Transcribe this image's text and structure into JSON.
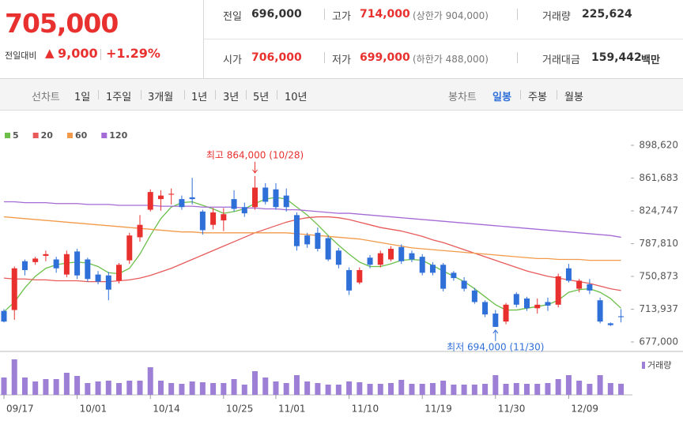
{
  "header": {
    "price": "705,000",
    "change_label": "전일대비",
    "change": "9,000",
    "change_rate": "+1.29%",
    "stats": [
      [
        {
          "label": "전일",
          "value": "696,000"
        },
        {
          "label": "고가",
          "value": "714,000",
          "note": "(상한가 904,000)"
        },
        {
          "label": "거래량",
          "value": "225,624"
        }
      ],
      [
        {
          "label": "시가",
          "value": "706,000"
        },
        {
          "label": "저가",
          "value": "699,000",
          "note": "(하한가 488,000)"
        },
        {
          "label": "거래대금",
          "value": "159,442",
          "unit": "백만"
        }
      ]
    ]
  },
  "toolbar": {
    "line_label": "선차트",
    "line_periods": [
      "1일",
      "1주일",
      "3개월",
      "1년",
      "3년",
      "5년",
      "10년"
    ],
    "candle_label": "봉차트",
    "candle_periods": [
      "일봉",
      "주봉",
      "월봉"
    ]
  },
  "chart_data": [
    {
      "type": "candlestick",
      "categories": [
        "09/17",
        null,
        null,
        null,
        null,
        null,
        null,
        "10/01",
        null,
        null,
        null,
        null,
        null,
        null,
        "10/14",
        null,
        null,
        null,
        null,
        null,
        null,
        "10/25",
        null,
        null,
        null,
        null,
        "11/01",
        null,
        null,
        null,
        null,
        null,
        null,
        "11/10",
        null,
        null,
        null,
        null,
        null,
        null,
        "11/19",
        null,
        null,
        null,
        null,
        null,
        null,
        "11/30",
        null,
        null,
        null,
        null,
        null,
        null,
        "12/09",
        null,
        null,
        null,
        null,
        null
      ],
      "open": [
        712000,
        713000,
        768000,
        767000,
        774000,
        770000,
        753000,
        779000,
        770000,
        753000,
        752000,
        746000,
        769000,
        795000,
        826000,
        838000,
        843000,
        838000,
        840000,
        824000,
        809000,
        814000,
        838000,
        829000,
        829000,
        851000,
        849000,
        842000,
        820000,
        797000,
        800000,
        794000,
        780000,
        758000,
        744000,
        772000,
        764000,
        770000,
        784000,
        777000,
        773000,
        764000,
        764000,
        755000,
        746000,
        735000,
        722000,
        709000,
        700000,
        731000,
        726000,
        715000,
        722000,
        719000,
        760000,
        737000,
        742000,
        724000,
        698000,
        706000
      ],
      "high": [
        714000,
        762000,
        770000,
        773000,
        780000,
        773000,
        780000,
        782000,
        772000,
        757000,
        756000,
        766000,
        800000,
        820000,
        849000,
        848000,
        850000,
        842000,
        862000,
        826000,
        828000,
        828000,
        848000,
        834000,
        864000,
        856000,
        856000,
        850000,
        823000,
        800000,
        806000,
        797000,
        783000,
        761000,
        761000,
        775000,
        780000,
        785000,
        787000,
        780000,
        776000,
        767000,
        766000,
        757000,
        750000,
        738000,
        724000,
        713000,
        721000,
        733000,
        728000,
        726000,
        727000,
        754000,
        765000,
        748000,
        748000,
        727000,
        699000,
        714000
      ],
      "low": [
        699000,
        702000,
        752000,
        764000,
        768000,
        755000,
        750000,
        748000,
        745000,
        742000,
        724000,
        743000,
        765000,
        790000,
        824000,
        825000,
        832000,
        826000,
        832000,
        798000,
        804000,
        802000,
        824000,
        818000,
        826000,
        832000,
        826000,
        824000,
        780000,
        783000,
        779000,
        768000,
        760000,
        730000,
        742000,
        760000,
        761000,
        768000,
        765000,
        767000,
        752000,
        752000,
        734000,
        746000,
        734000,
        720000,
        705000,
        694000,
        697000,
        716000,
        712000,
        709000,
        712000,
        716000,
        744000,
        733000,
        731000,
        698000,
        695000,
        699000
      ],
      "close": [
        700000,
        760000,
        758000,
        771000,
        776000,
        760000,
        776000,
        752000,
        748000,
        745000,
        736000,
        764000,
        797000,
        809000,
        846000,
        842000,
        844000,
        829000,
        838000,
        803000,
        823000,
        821000,
        827000,
        822000,
        851000,
        835000,
        829000,
        829000,
        785000,
        787000,
        782000,
        770000,
        764000,
        735000,
        758000,
        764000,
        777000,
        782000,
        768000,
        770000,
        755000,
        755000,
        737000,
        749000,
        737000,
        722000,
        708000,
        694000,
        719000,
        719000,
        715000,
        719000,
        718000,
        751000,
        746000,
        746000,
        735000,
        700000,
        696000,
        705000
      ],
      "up_color": "#e8312f",
      "down_color": "#2f6fd8",
      "series": [
        {
          "name": "5",
          "color": "#6cc04a",
          "values": [
            711000,
            722000,
            738000,
            751000,
            760000,
            764000,
            766000,
            767000,
            766000,
            762000,
            755000,
            754000,
            760000,
            776000,
            797000,
            816000,
            829000,
            834000,
            835000,
            831000,
            827000,
            822000,
            824000,
            827000,
            833000,
            838000,
            840000,
            838000,
            829000,
            820000,
            809000,
            797000,
            786000,
            776000,
            767000,
            762000,
            762000,
            765000,
            769000,
            770000,
            769000,
            763000,
            757000,
            751000,
            745000,
            737000,
            728000,
            719000,
            713000,
            713000,
            715000,
            717000,
            719000,
            724000,
            733000,
            736000,
            737000,
            733000,
            726000,
            715000
          ]
        },
        {
          "name": "20",
          "color": "#e85a5a",
          "values": [
            749000,
            748000,
            748000,
            747000,
            747000,
            746000,
            746000,
            746000,
            745000,
            745000,
            745000,
            746000,
            747000,
            749000,
            752000,
            756000,
            760000,
            765000,
            770000,
            775000,
            780000,
            785000,
            790000,
            795000,
            800000,
            804000,
            808000,
            812000,
            815000,
            817000,
            818000,
            818000,
            817000,
            815000,
            812000,
            809000,
            806000,
            804000,
            802000,
            799000,
            796000,
            792000,
            789000,
            785000,
            781000,
            777000,
            773000,
            769000,
            765000,
            761000,
            757000,
            754000,
            751000,
            749000,
            747000,
            745000,
            743000,
            740000,
            737000,
            735000
          ]
        },
        {
          "name": "60",
          "color": "#f29a4a",
          "values": [
            818000,
            817000,
            816000,
            815000,
            814000,
            813000,
            812000,
            811000,
            810000,
            809000,
            808000,
            807000,
            806000,
            805000,
            804000,
            803000,
            802000,
            801000,
            801000,
            800000,
            800000,
            800000,
            800000,
            800000,
            800000,
            800000,
            800000,
            800000,
            799000,
            798000,
            797000,
            796000,
            795000,
            794000,
            793000,
            791000,
            789000,
            787000,
            785000,
            783000,
            782000,
            781000,
            780000,
            779000,
            778000,
            777000,
            776000,
            775000,
            774000,
            773000,
            772000,
            771000,
            771000,
            770000,
            770000,
            770000,
            769000,
            769000,
            769000,
            769000
          ]
        },
        {
          "name": "120",
          "color": "#a46ad6",
          "values": [
            835000,
            835000,
            834000,
            834000,
            834000,
            833000,
            833000,
            833000,
            832000,
            832000,
            832000,
            831000,
            831000,
            831000,
            831000,
            830000,
            830000,
            830000,
            830000,
            829000,
            829000,
            829000,
            829000,
            828000,
            828000,
            827000,
            827000,
            826000,
            826000,
            825000,
            824000,
            823000,
            822000,
            822000,
            821000,
            820000,
            819000,
            818000,
            817000,
            816000,
            815000,
            814000,
            813000,
            812000,
            811000,
            810000,
            809000,
            808000,
            807000,
            806000,
            805000,
            804000,
            803000,
            802000,
            801000,
            800000,
            799000,
            798000,
            797000,
            795000
          ]
        }
      ],
      "ylim": [
        677000,
        898620
      ],
      "yticks": [
        {
          "value": 898620,
          "label": "898,620"
        },
        {
          "value": 861683,
          "label": "861,683"
        },
        {
          "value": 824747,
          "label": "824,747"
        },
        {
          "value": 787810,
          "label": "787,810"
        },
        {
          "value": 750873,
          "label": "750,873"
        },
        {
          "value": 713937,
          "label": "713,937"
        },
        {
          "value": 677000,
          "label": "677,000"
        }
      ],
      "annotations": {
        "high": "최고 864,000 (10/28)",
        "low": "최저 694,000 (11/30)"
      }
    },
    {
      "type": "bar",
      "name": "거래량",
      "color": "#9d80d6",
      "ylim": [
        0,
        800000
      ],
      "values": [
        352000,
        720000,
        352000,
        272000,
        320000,
        320000,
        448000,
        384000,
        240000,
        272000,
        288000,
        240000,
        288000,
        288000,
        560000,
        288000,
        240000,
        224000,
        272000,
        256000,
        240000,
        240000,
        320000,
        208000,
        480000,
        352000,
        272000,
        240000,
        400000,
        272000,
        240000,
        208000,
        208000,
        272000,
        256000,
        224000,
        224000,
        240000,
        304000,
        224000,
        224000,
        240000,
        288000,
        208000,
        208000,
        208000,
        224000,
        400000,
        224000,
        240000,
        224000,
        224000,
        240000,
        320000,
        400000,
        288000,
        224000,
        400000,
        240000,
        225624
      ]
    }
  ]
}
